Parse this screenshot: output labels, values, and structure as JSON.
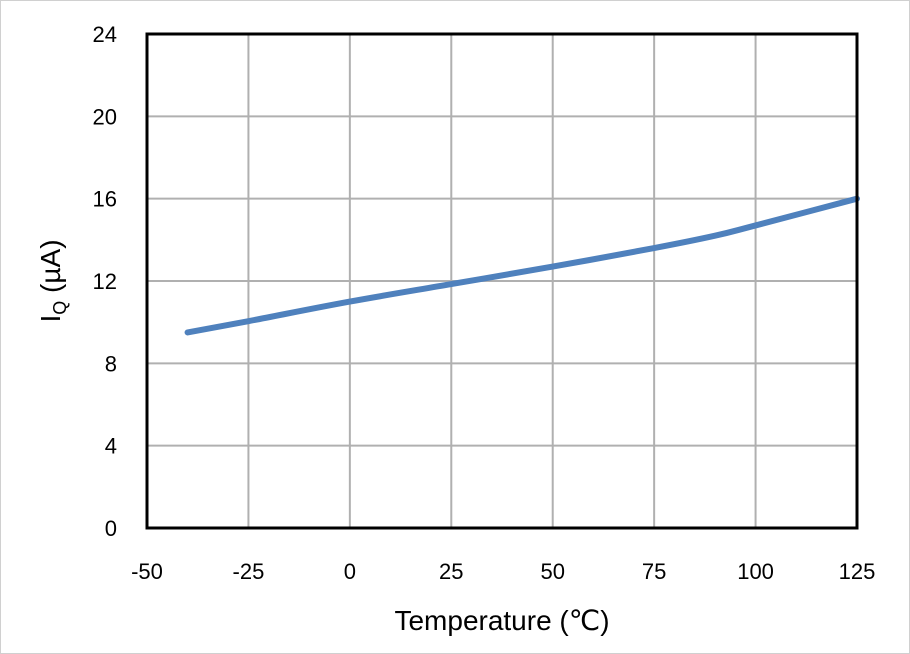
{
  "chart_data": {
    "type": "line",
    "title": "",
    "xlabel": "Temperature (℃)",
    "ylabel_main": "I",
    "ylabel_sub": "Q",
    "ylabel_unit": " (µA)",
    "xlim": [
      -50,
      125
    ],
    "ylim": [
      0,
      24
    ],
    "xticks": [
      -50,
      -25,
      0,
      25,
      50,
      75,
      100,
      125
    ],
    "yticks": [
      0,
      4,
      8,
      12,
      16,
      20,
      24
    ],
    "grid": true,
    "series": [
      {
        "color": "#4f81bd",
        "x": [
          -40,
          -25,
          0,
          25,
          50,
          75,
          90,
          100,
          125
        ],
        "y": [
          9.5,
          10.05,
          11.0,
          11.85,
          12.7,
          13.6,
          14.2,
          14.7,
          16.0
        ]
      }
    ]
  }
}
